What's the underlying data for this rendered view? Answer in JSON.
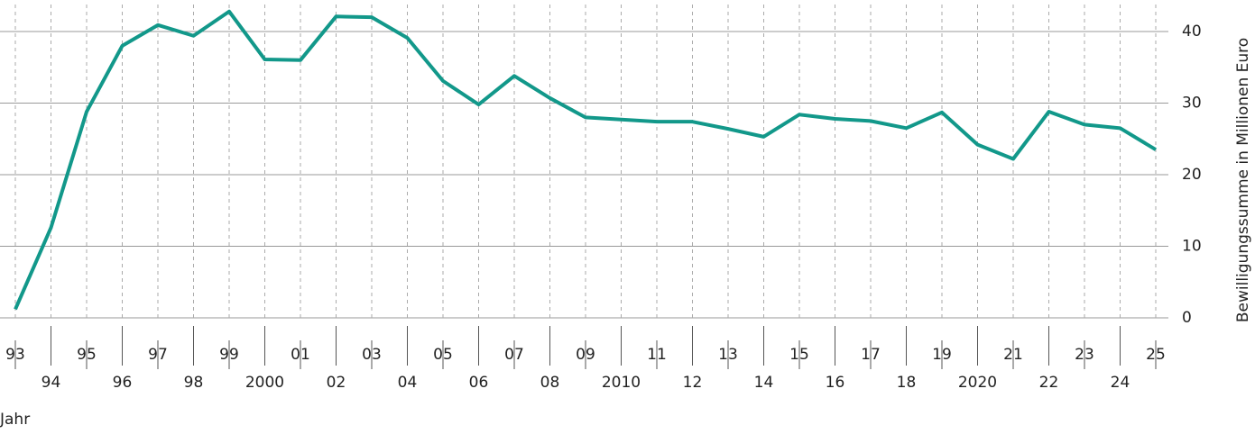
{
  "chart_data": {
    "type": "line",
    "x_label": "Jahr",
    "y_label": "Bewilligungssumme in Millionen Euro",
    "categories": [
      "93",
      "94",
      "95",
      "96",
      "97",
      "98",
      "99",
      "2000",
      "01",
      "02",
      "03",
      "04",
      "05",
      "06",
      "07",
      "08",
      "09",
      "2010",
      "11",
      "12",
      "13",
      "14",
      "15",
      "16",
      "17",
      "18",
      "19",
      "2020",
      "21",
      "22",
      "23",
      "24",
      "25"
    ],
    "series": [
      {
        "name": "Bewilligungssumme",
        "color": "#12988a",
        "values": [
          1.2,
          12.6,
          28.8,
          38,
          40.9,
          39.4,
          42.8,
          36.1,
          36,
          42.1,
          42,
          39.1,
          33.1,
          29.8,
          33.8,
          30.7,
          28,
          27.7,
          27.4,
          27.4,
          26.4,
          25.3,
          28.4,
          27.8,
          27.5,
          26.5,
          28.7,
          24.2,
          22.2,
          28.8,
          27,
          26.5,
          23.5
        ]
      }
    ],
    "ylim": [
      0,
      43.5
    ],
    "yticks": [
      0,
      10,
      20,
      30,
      40
    ],
    "grid": true
  }
}
